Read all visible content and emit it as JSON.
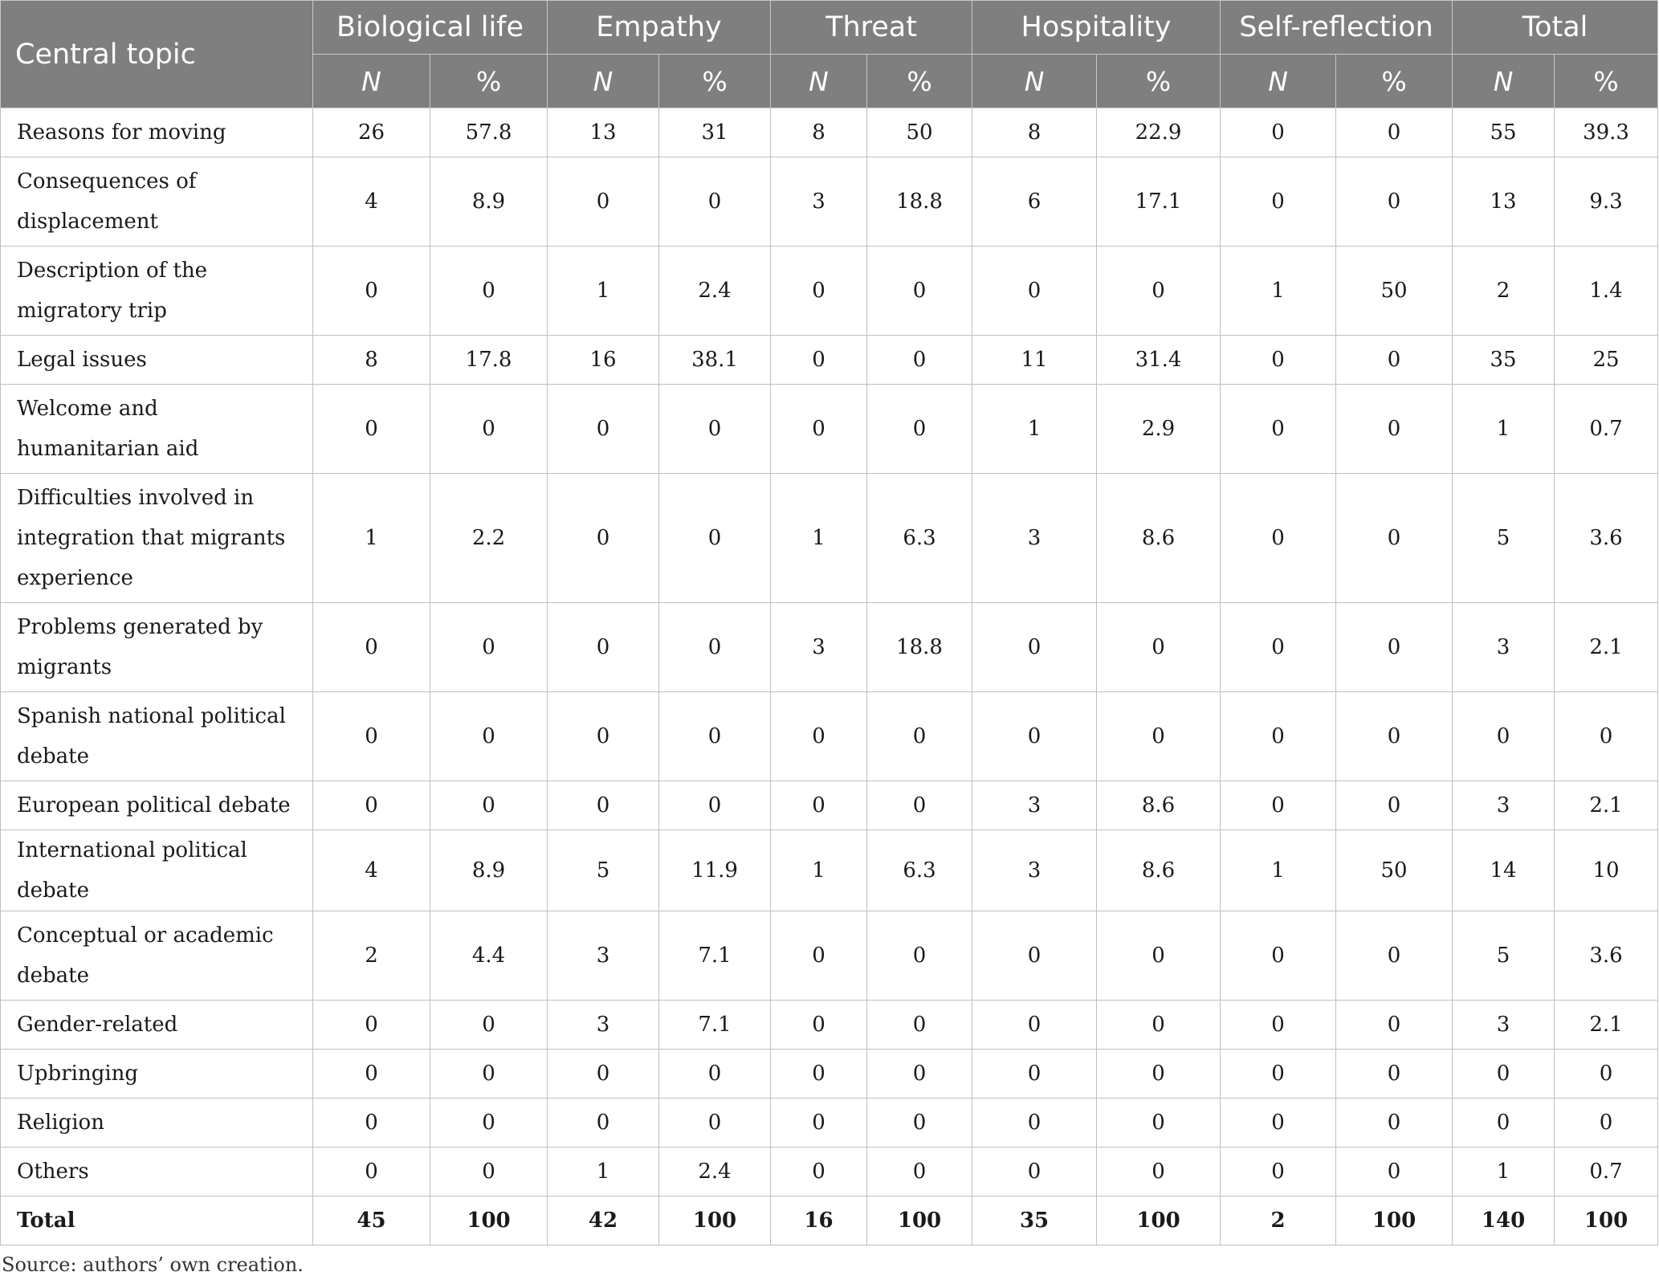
{
  "table": {
    "corner_header": "Central topic",
    "groups": [
      "Biological life",
      "Empathy",
      "Threat",
      "Hospitality",
      "Self-reflection",
      "Total"
    ],
    "sub_headers": [
      "N",
      "%"
    ],
    "rows": [
      {
        "topic": "Reasons for moving",
        "lines": 1,
        "values": [
          "26",
          "57.8",
          "13",
          "31",
          "8",
          "50",
          "8",
          "22.9",
          "0",
          "0",
          "55",
          "39.3"
        ]
      },
      {
        "topic": "Consequences of displacement",
        "lines": 2,
        "values": [
          "4",
          "8.9",
          "0",
          "0",
          "3",
          "18.8",
          "6",
          "17.1",
          "0",
          "0",
          "13",
          "9.3"
        ]
      },
      {
        "topic": "Description of the migratory trip",
        "lines": 2,
        "values": [
          "0",
          "0",
          "1",
          "2.4",
          "0",
          "0",
          "0",
          "0",
          "1",
          "50",
          "2",
          "1.4"
        ]
      },
      {
        "topic": "Legal issues",
        "lines": 1,
        "values": [
          "8",
          "17.8",
          "16",
          "38.1",
          "0",
          "0",
          "11",
          "31.4",
          "0",
          "0",
          "35",
          "25"
        ]
      },
      {
        "topic": "Welcome and humanitarian aid",
        "lines": 2,
        "values": [
          "0",
          "0",
          "0",
          "0",
          "0",
          "0",
          "1",
          "2.9",
          "0",
          "0",
          "1",
          "0.7"
        ]
      },
      {
        "topic": "Difficulties involved in integration that migrants experience",
        "lines": 3,
        "values": [
          "1",
          "2.2",
          "0",
          "0",
          "1",
          "6.3",
          "3",
          "8.6",
          "0",
          "0",
          "5",
          "3.6"
        ]
      },
      {
        "topic": "Problems generated by migrants",
        "lines": 2,
        "values": [
          "0",
          "0",
          "0",
          "0",
          "3",
          "18.8",
          "0",
          "0",
          "0",
          "0",
          "3",
          "2.1"
        ]
      },
      {
        "topic": "Spanish national political debate",
        "lines": 2,
        "values": [
          "0",
          "0",
          "0",
          "0",
          "0",
          "0",
          "0",
          "0",
          "0",
          "0",
          "0",
          "0"
        ]
      },
      {
        "topic": "European political debate",
        "lines": 1,
        "values": [
          "0",
          "0",
          "0",
          "0",
          "0",
          "0",
          "3",
          "8.6",
          "0",
          "0",
          "3",
          "2.1"
        ]
      },
      {
        "topic": "International political debate",
        "lines": 1,
        "values": [
          "4",
          "8.9",
          "5",
          "11.9",
          "1",
          "6.3",
          "3",
          "8.6",
          "1",
          "50",
          "14",
          "10"
        ]
      },
      {
        "topic": "Conceptual or academic debate",
        "lines": 2,
        "values": [
          "2",
          "4.4",
          "3",
          "7.1",
          "0",
          "0",
          "0",
          "0",
          "0",
          "0",
          "5",
          "3.6"
        ]
      },
      {
        "topic": "Gender-related",
        "lines": 1,
        "values": [
          "0",
          "0",
          "3",
          "7.1",
          "0",
          "0",
          "0",
          "0",
          "0",
          "0",
          "3",
          "2.1"
        ]
      },
      {
        "topic": "Upbringing",
        "lines": 1,
        "values": [
          "0",
          "0",
          "0",
          "0",
          "0",
          "0",
          "0",
          "0",
          "0",
          "0",
          "0",
          "0"
        ]
      },
      {
        "topic": "Religion",
        "lines": 1,
        "values": [
          "0",
          "0",
          "0",
          "0",
          "0",
          "0",
          "0",
          "0",
          "0",
          "0",
          "0",
          "0"
        ]
      },
      {
        "topic": "Others",
        "lines": 1,
        "values": [
          "0",
          "0",
          "1",
          "2.4",
          "0",
          "0",
          "0",
          "0",
          "0",
          "0",
          "1",
          "0.7"
        ]
      }
    ],
    "total_row": {
      "topic": "Total",
      "values": [
        "45",
        "100",
        "42",
        "100",
        "16",
        "100",
        "35",
        "100",
        "2",
        "100",
        "140",
        "100"
      ]
    }
  },
  "source_note": "Source: authors’ own creation."
}
